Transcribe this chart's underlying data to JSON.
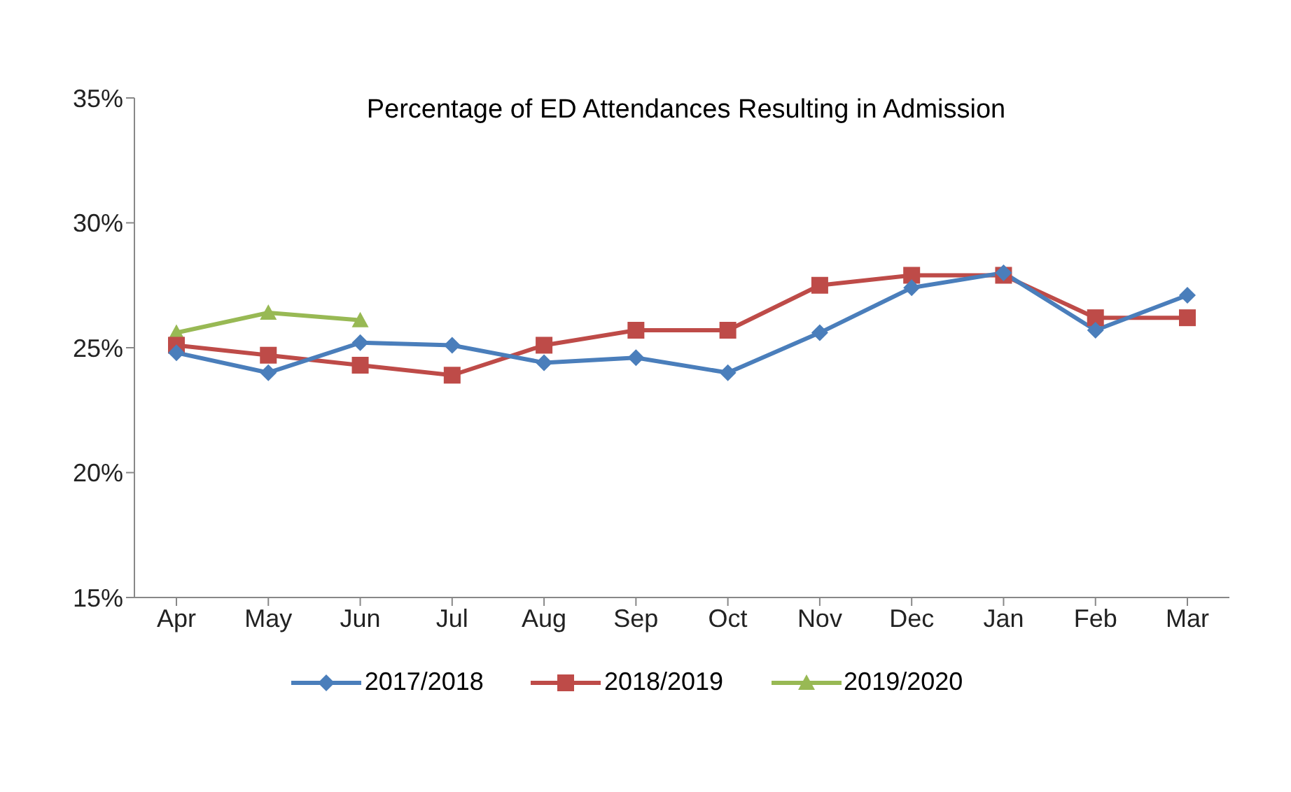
{
  "chart_data": {
    "type": "line",
    "title": "Percentage of ED Attendances Resulting in Admission",
    "categories": [
      "Apr",
      "May",
      "Jun",
      "Jul",
      "Aug",
      "Sep",
      "Oct",
      "Nov",
      "Dec",
      "Jan",
      "Feb",
      "Mar"
    ],
    "series": [
      {
        "name": "2017/2018",
        "color": "#4a7ebb",
        "marker": "diamond",
        "values": [
          24.8,
          24.0,
          25.2,
          25.1,
          24.4,
          24.6,
          24.0,
          25.6,
          27.4,
          28.0,
          25.7,
          27.1
        ]
      },
      {
        "name": "2018/2019",
        "color": "#be4b48",
        "marker": "square",
        "values": [
          25.1,
          24.7,
          24.3,
          23.9,
          25.1,
          25.7,
          25.7,
          27.5,
          27.9,
          27.9,
          26.2,
          26.2
        ]
      },
      {
        "name": "2019/2020",
        "color": "#98b954",
        "marker": "triangle",
        "values": [
          25.6,
          26.4,
          26.1,
          null,
          null,
          null,
          null,
          null,
          null,
          null,
          null,
          null
        ]
      }
    ],
    "ylim": [
      15,
      35
    ],
    "yticks": [
      {
        "value": 15,
        "label": "15%"
      },
      {
        "value": 20,
        "label": "20%"
      },
      {
        "value": 25,
        "label": "25%"
      },
      {
        "value": 30,
        "label": "30%"
      },
      {
        "value": 35,
        "label": "35%"
      }
    ],
    "grid": false,
    "legend": "bottom",
    "line_style": "solid"
  }
}
